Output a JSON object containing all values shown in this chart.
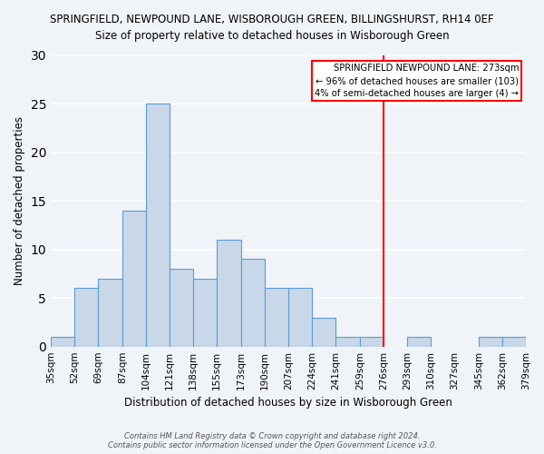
{
  "title": "SPRINGFIELD, NEWPOUND LANE, WISBOROUGH GREEN, BILLINGSHURST, RH14 0EF",
  "subtitle": "Size of property relative to detached houses in Wisborough Green",
  "xlabel": "Distribution of detached houses by size in Wisborough Green",
  "ylabel": "Number of detached properties",
  "footer_lines": [
    "Contains HM Land Registry data © Crown copyright and database right 2024.",
    "Contains public sector information licensed under the Open Government Licence v3.0."
  ],
  "bin_labels": [
    "35sqm",
    "52sqm",
    "69sqm",
    "87sqm",
    "104sqm",
    "121sqm",
    "138sqm",
    "155sqm",
    "173sqm",
    "190sqm",
    "207sqm",
    "224sqm",
    "241sqm",
    "259sqm",
    "276sqm",
    "293sqm",
    "310sqm",
    "327sqm",
    "345sqm",
    "362sqm",
    "379sqm"
  ],
  "bin_edges": [
    35,
    52,
    69,
    87,
    104,
    121,
    138,
    155,
    173,
    190,
    207,
    224,
    241,
    259,
    276,
    293,
    310,
    327,
    345,
    362,
    379
  ],
  "bar_heights": [
    1,
    6,
    7,
    14,
    25,
    8,
    7,
    11,
    9,
    6,
    6,
    3,
    1,
    1,
    0,
    1,
    0,
    0,
    1,
    1
  ],
  "bar_color": "#c8d8e8",
  "bar_edge_color": "#5b9bd5",
  "vline_x": 276,
  "vline_color": "red",
  "ylim": [
    0,
    30
  ],
  "yticks": [
    0,
    5,
    10,
    15,
    20,
    25,
    30
  ],
  "annotation_title": "SPRINGFIELD NEWPOUND LANE: 273sqm",
  "annotation_line1": "← 96% of detached houses are smaller (103)",
  "annotation_line2": "4% of semi-detached houses are larger (4) →",
  "annotation_box_color": "#ffffff",
  "annotation_border_color": "red",
  "background_color": "#f0f4f8",
  "grid_color": "#ffffff"
}
